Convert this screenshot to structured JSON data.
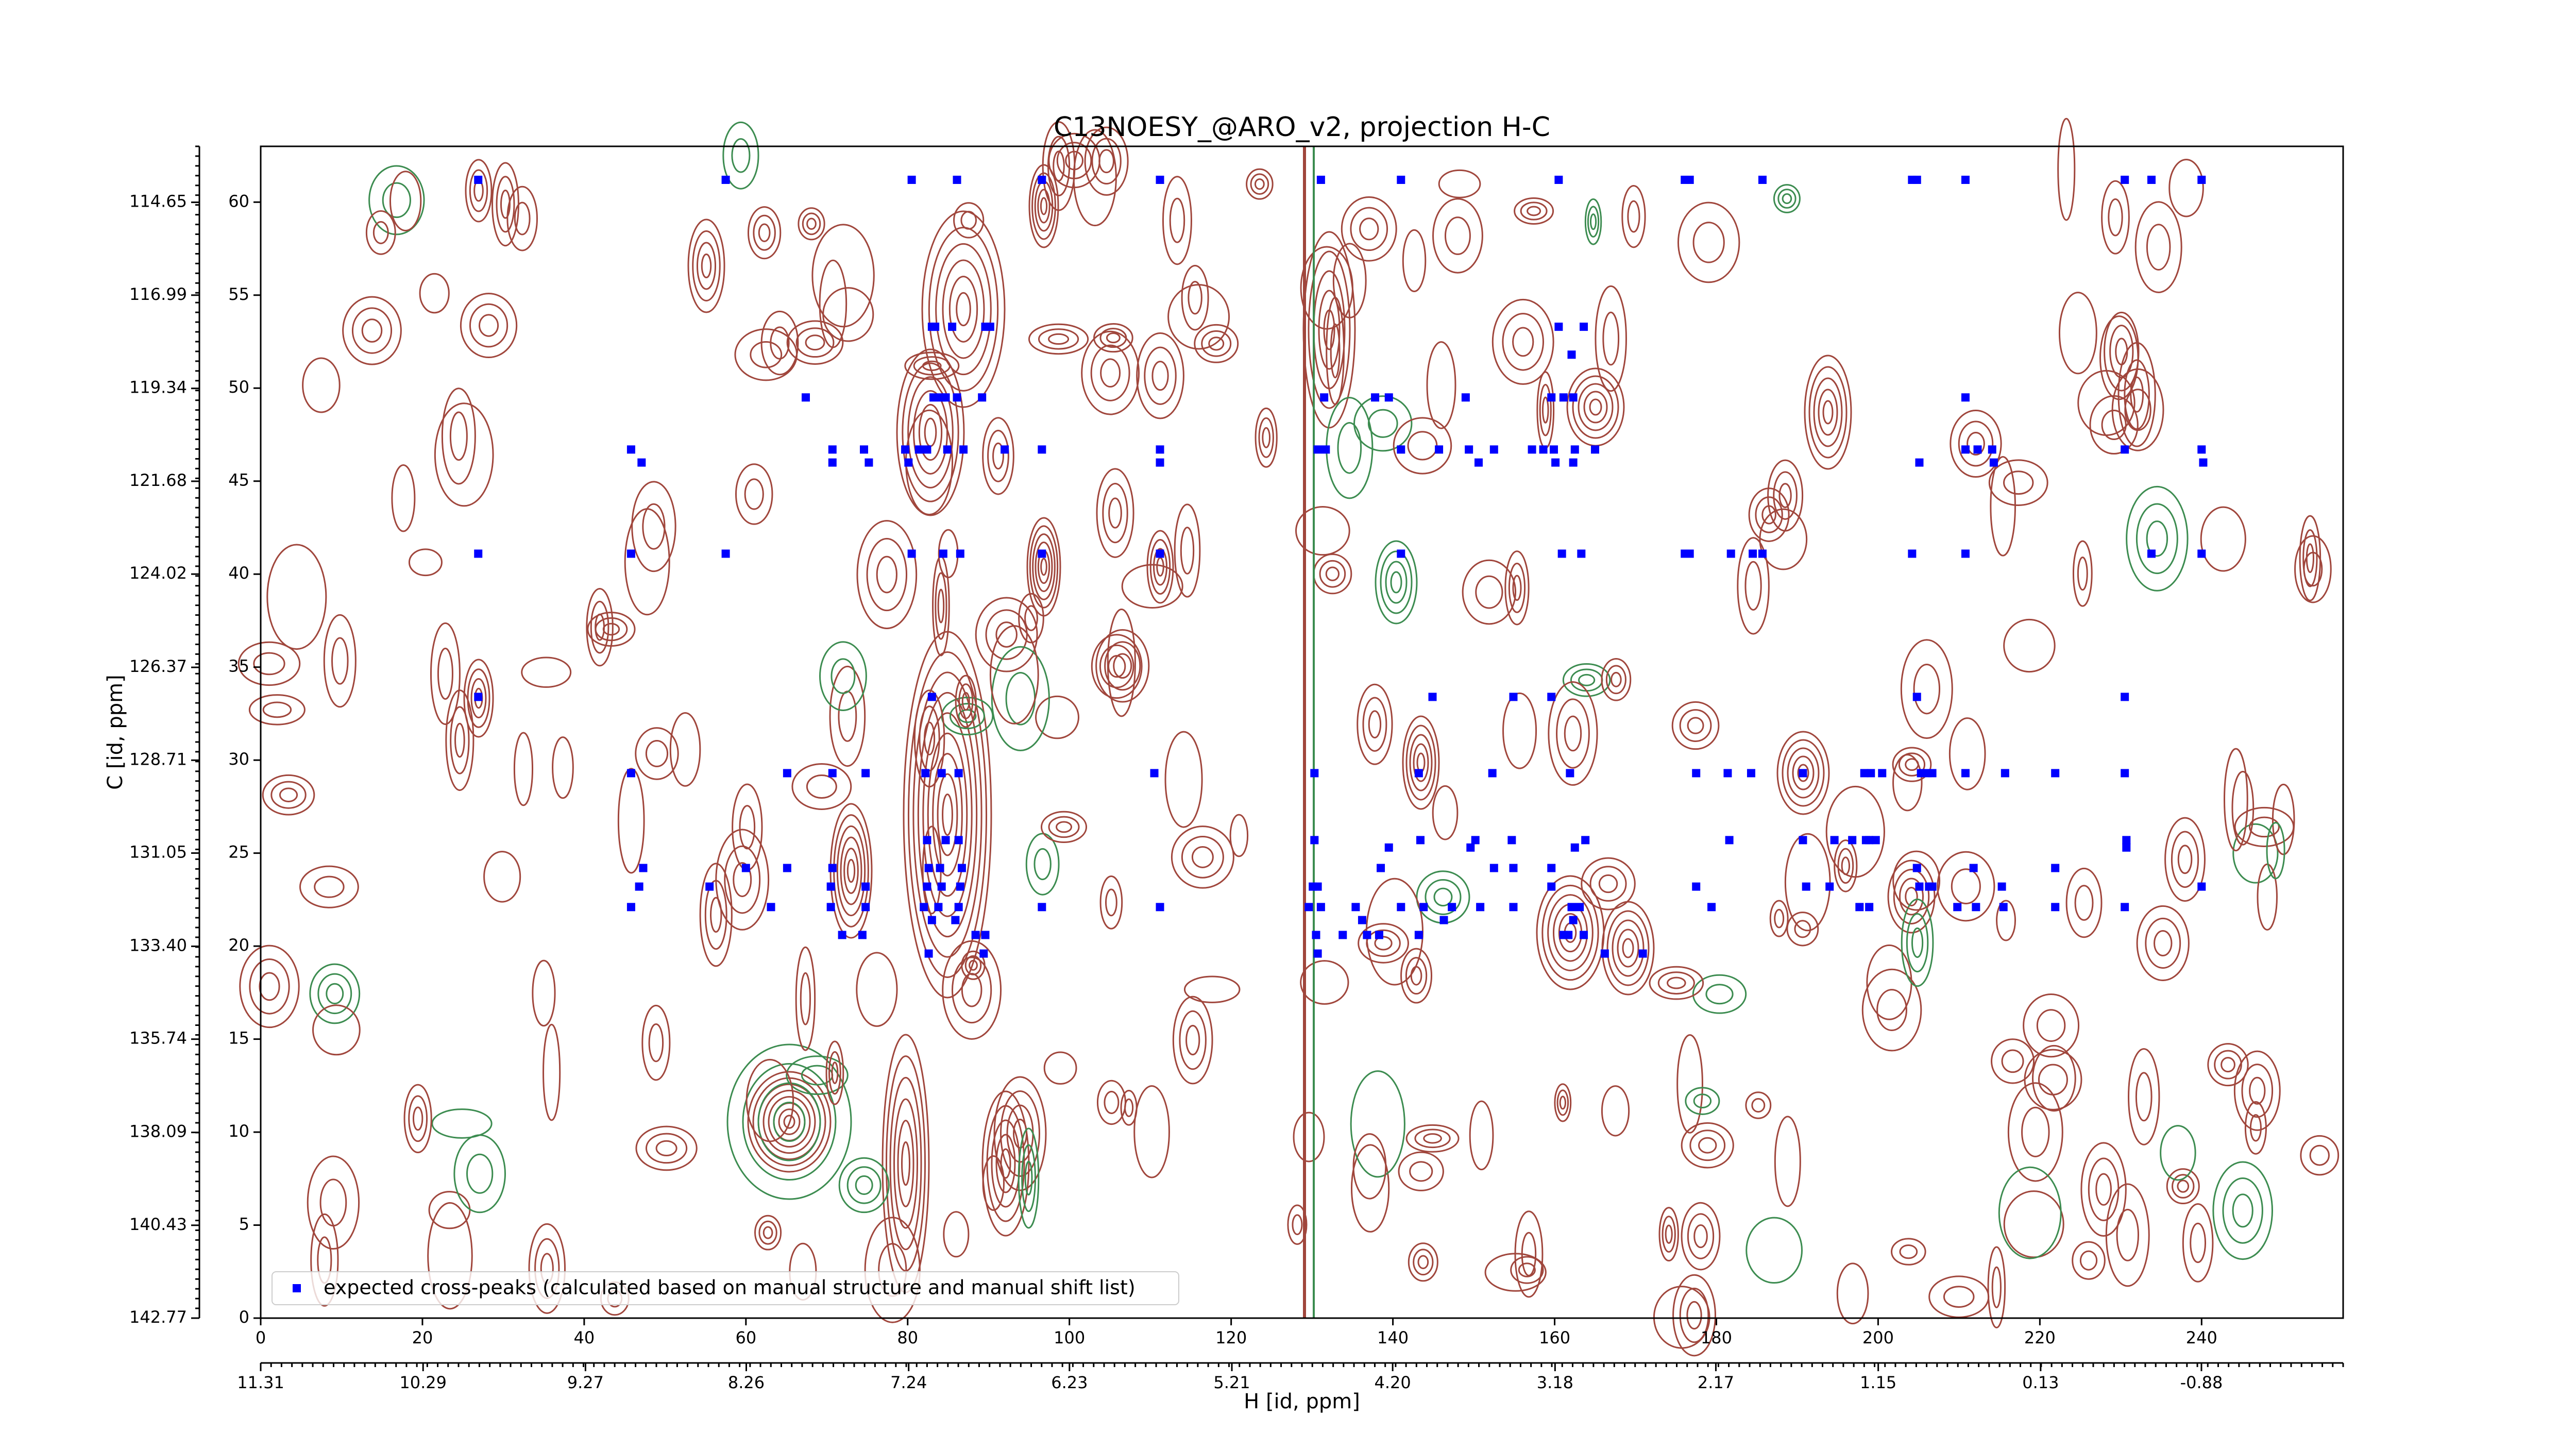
{
  "chart_data": {
    "type": "scatter",
    "title": "C13NOESY_@ARO_v2, projection H-C",
    "xlabel": "H [id, ppm]",
    "ylabel": "C [id, ppm]",
    "xlim": [
      0,
      257.5
    ],
    "xticks": [
      0,
      20,
      40,
      60,
      80,
      100,
      120,
      140,
      160,
      180,
      200,
      220,
      240
    ],
    "ylim": [
      0,
      63
    ],
    "yticks": [
      0,
      5,
      10,
      15,
      20,
      25,
      30,
      35,
      40,
      45,
      50,
      55,
      60
    ],
    "x2lim": [
      11.31,
      -1.77
    ],
    "x2ticks": [
      11.31,
      10.29,
      9.27,
      8.26,
      7.24,
      6.23,
      5.21,
      {
        "value": 4.2,
        "label": "4.20"
      },
      3.18,
      2.17,
      1.15,
      0.13,
      -0.88
    ],
    "y2lim": [
      142.77,
      113.24
    ],
    "y2ticks": [
      142.77,
      140.43,
      138.09,
      135.74,
      {
        "value": 133.4,
        "label": "133.40"
      },
      131.05,
      128.71,
      126.37,
      124.02,
      121.68,
      119.34,
      116.99,
      114.65
    ],
    "legend": "lower left",
    "series": [
      {
        "name": "expected cross-peaks (calculated based on manual structure and manual shift list)",
        "color": "#0000ff",
        "x": [
          26.9,
          57.5,
          80.5,
          86.1,
          96.6,
          111.2,
          131.1,
          141.0,
          160.5,
          176.1,
          176.7,
          185.7,
          204.2,
          204.8,
          210.8,
          230.5,
          233.8,
          240,
          83.0,
          83.4,
          85.5,
          89.6,
          90.2,
          160.5,
          163.6,
          162.1,
          67.4,
          83.2,
          84.2,
          84.7,
          86.1,
          89.2,
          131.5,
          137.8,
          139.5,
          149,
          159.6,
          161.1,
          162.3,
          210.8,
          45.8,
          70.7,
          74.6,
          79.7,
          81.4,
          82.4,
          84.9,
          86.9,
          92,
          96.6,
          111.2,
          130.7,
          131.7,
          141,
          145.7,
          149.4,
          152.5,
          157.2,
          158.6,
          159.9,
          162.5,
          165,
          210.8,
          212.3,
          214.1,
          230.5,
          240,
          47.1,
          70.7,
          75.2,
          80.1,
          111.2,
          150.6,
          160.1,
          162.3,
          205.1,
          214.3,
          240.2,
          26.9,
          45.8,
          57.5,
          80.5,
          84.4,
          86.5,
          96.6,
          111.2,
          141,
          160.9,
          163.3,
          176.1,
          176.7,
          181.8,
          184.5,
          185.7,
          204.2,
          210.8,
          233.8,
          240,
          26.9,
          83,
          144.9,
          154.9,
          159.6,
          204.8,
          230.5,
          45.8,
          65.1,
          70.7,
          74.8,
          82.2,
          84.2,
          86.3,
          110.5,
          130.3,
          143.2,
          152.3,
          161.9,
          177.5,
          181.4,
          184.3,
          190.7,
          198.3,
          199.1,
          200.5,
          205.3,
          206.1,
          206.7,
          210.8,
          215.7,
          221.9,
          230.5,
          82.4,
          84.7,
          86.3,
          130.3,
          143.4,
          150.2,
          154.7,
          163.8,
          181.6,
          190.7,
          194.6,
          196.8,
          198.5,
          198.9,
          199.7,
          230.7,
          139.5,
          149.6,
          162.5,
          230.7,
          47.3,
          60,
          65.1,
          70.7,
          82.6,
          84,
          86.7,
          138.5,
          152.5,
          154.9,
          159.6,
          204.8,
          211.8,
          221.9,
          46.8,
          55.5,
          70.5,
          74.8,
          82.4,
          84.2,
          86.5,
          130.1,
          130.7,
          159.6,
          177.5,
          191.1,
          194,
          205.1,
          206.3,
          206.7,
          215.3,
          240,
          45.8,
          63.1,
          70.5,
          74.8,
          82,
          83.8,
          86.3,
          96.6,
          111.2,
          129.6,
          131.1,
          135.4,
          141,
          143.8,
          147.3,
          150.8,
          154.9,
          162.1,
          163.1,
          179.4,
          197.7,
          198.9,
          209.8,
          212.1,
          215.5,
          221.9,
          230.5,
          83,
          85.9,
          136.2,
          146.3,
          162.3,
          71.9,
          74.4,
          88.4,
          89.6,
          130.5,
          133.8,
          136.8,
          138.3,
          143.2,
          161.1,
          161.7,
          163.6,
          82.6,
          89.4,
          130.7,
          166.2,
          170.9
        ],
        "y": [
          61.2,
          61.2,
          61.2,
          61.2,
          61.2,
          61.2,
          61.2,
          61.2,
          61.2,
          61.2,
          61.2,
          61.2,
          61.2,
          61.2,
          61.2,
          61.2,
          61.2,
          61.2,
          53.3,
          53.3,
          53.3,
          53.3,
          53.3,
          53.3,
          53.3,
          51.8,
          49.5,
          49.5,
          49.5,
          49.5,
          49.5,
          49.5,
          49.5,
          49.5,
          49.5,
          49.5,
          49.5,
          49.5,
          49.5,
          49.5,
          46.7,
          46.7,
          46.7,
          46.7,
          46.7,
          46.7,
          46.7,
          46.7,
          46.7,
          46.7,
          46.7,
          46.7,
          46.7,
          46.7,
          46.7,
          46.7,
          46.7,
          46.7,
          46.7,
          46.7,
          46.7,
          46.7,
          46.7,
          46.7,
          46.7,
          46.7,
          46.7,
          46,
          46,
          46,
          46,
          46,
          46,
          46,
          46,
          46,
          46,
          46,
          41.1,
          41.1,
          41.1,
          41.1,
          41.1,
          41.1,
          41.1,
          41.1,
          41.1,
          41.1,
          41.1,
          41.1,
          41.1,
          41.1,
          41.1,
          41.1,
          41.1,
          41.1,
          41.1,
          41.1,
          33.4,
          33.4,
          33.4,
          33.4,
          33.4,
          33.4,
          33.4,
          29.3,
          29.3,
          29.3,
          29.3,
          29.3,
          29.3,
          29.3,
          29.3,
          29.3,
          29.3,
          29.3,
          29.3,
          29.3,
          29.3,
          29.3,
          29.3,
          29.3,
          29.3,
          29.3,
          29.3,
          29.3,
          29.3,
          29.3,
          29.3,
          29.3,
          29.3,
          25.7,
          25.7,
          25.7,
          25.7,
          25.7,
          25.7,
          25.7,
          25.7,
          25.7,
          25.7,
          25.7,
          25.7,
          25.7,
          25.7,
          25.7,
          25.7,
          25.3,
          25.3,
          25.3,
          25.3,
          24.2,
          24.2,
          24.2,
          24.2,
          24.2,
          24.2,
          24.2,
          24.2,
          24.2,
          24.2,
          24.2,
          24.2,
          24.2,
          24.2,
          23.2,
          23.2,
          23.2,
          23.2,
          23.2,
          23.2,
          23.2,
          23.2,
          23.2,
          23.2,
          23.2,
          23.2,
          23.2,
          23.2,
          23.2,
          23.2,
          23.2,
          23.2,
          22.1,
          22.1,
          22.1,
          22.1,
          22.1,
          22.1,
          22.1,
          22.1,
          22.1,
          22.1,
          22.1,
          22.1,
          22.1,
          22.1,
          22.1,
          22.1,
          22.1,
          22.1,
          22.1,
          22.1,
          22.1,
          22.1,
          22.1,
          22.1,
          22.1,
          22.1,
          22.1,
          21.4,
          21.4,
          21.4,
          21.4,
          21.4,
          20.6,
          20.6,
          20.6,
          20.6,
          20.6,
          20.6,
          20.6,
          20.6,
          20.6,
          20.6,
          20.6,
          20.6,
          19.6,
          19.6,
          19.6,
          19.6,
          19.6
        ]
      }
    ]
  }
}
